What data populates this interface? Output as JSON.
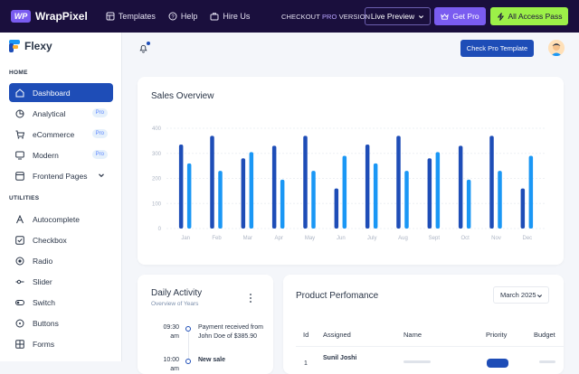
{
  "topbar": {
    "logo_mark": "WP",
    "logo_text": "WrapPixel",
    "links": [
      {
        "label": "Templates",
        "icon": "layers-icon"
      },
      {
        "label": "Help",
        "icon": "help-circle-icon"
      },
      {
        "label": "Hire Us",
        "icon": "briefcase-icon"
      }
    ],
    "checkout_prefix": "CHECKOUT",
    "checkout_pro": "PRO",
    "checkout_suffix": "VERSION",
    "live_preview": "Live Preview",
    "get_pro": "Get Pro",
    "all_access": "All Access Pass"
  },
  "sidebar": {
    "brand": "Flexy",
    "home_label": "HOME",
    "utilities_label": "UTILITIES",
    "home_items": [
      {
        "label": "Dashboard",
        "icon": "home-icon",
        "active": true
      },
      {
        "label": "Analytical",
        "icon": "chart-pie-icon",
        "badge": "Pro"
      },
      {
        "label": "eCommerce",
        "icon": "cart-icon",
        "badge": "Pro"
      },
      {
        "label": "Modern",
        "icon": "monitor-icon",
        "badge": "Pro"
      },
      {
        "label": "Frontend Pages",
        "icon": "layout-icon",
        "chevron": true
      }
    ],
    "utility_items": [
      {
        "label": "Autocomplete",
        "icon": "text-icon"
      },
      {
        "label": "Checkbox",
        "icon": "checkbox-icon"
      },
      {
        "label": "Radio",
        "icon": "radio-icon"
      },
      {
        "label": "Slider",
        "icon": "slider-icon"
      },
      {
        "label": "Switch",
        "icon": "switch-icon"
      },
      {
        "label": "Buttons",
        "icon": "circle-dot-icon"
      },
      {
        "label": "Forms",
        "icon": "form-icon"
      }
    ]
  },
  "header": {
    "check_pro_template": "Check Pro Template"
  },
  "sales": {
    "title": "Sales Overview"
  },
  "chart_data": {
    "type": "bar",
    "title": "Sales Overview",
    "categories": [
      "Jan",
      "Feb",
      "Mar",
      "Apr",
      "May",
      "Jun",
      "July",
      "Aug",
      "Sept",
      "Oct",
      "Nov",
      "Dec"
    ],
    "series": [
      {
        "color": "#1e4db7",
        "values": [
          335,
          370,
          280,
          330,
          370,
          160,
          335,
          370,
          280,
          330,
          370,
          160
        ]
      },
      {
        "color": "#1a97f5",
        "values": [
          260,
          230,
          305,
          195,
          230,
          290,
          260,
          230,
          305,
          195,
          230,
          290
        ]
      }
    ],
    "ylim": [
      0,
      400
    ],
    "yticks": [
      0,
      100,
      200,
      300,
      400
    ],
    "grid": true
  },
  "daily": {
    "title": "Daily Activity",
    "subtitle": "Overview of Years",
    "items": [
      {
        "time": "09:30 am",
        "text": "Payment received from John Doe of $385.90"
      },
      {
        "time": "10:00 am",
        "text": "New sale"
      }
    ]
  },
  "product": {
    "title": "Product Perfomance",
    "month": "March 2025",
    "columns": [
      "Id",
      "Assigned",
      "Name",
      "Priority",
      "Budget"
    ],
    "rows": [
      {
        "id": "1",
        "assigned": "Sunil Joshi"
      }
    ]
  }
}
